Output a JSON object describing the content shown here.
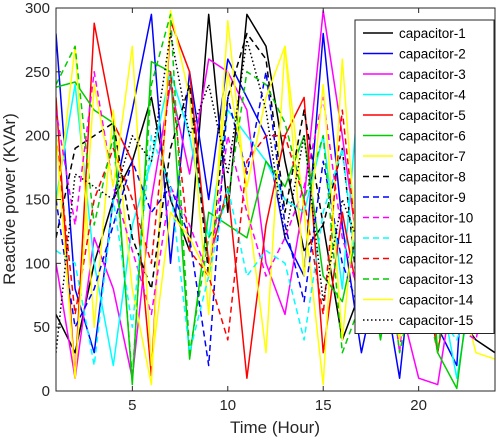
{
  "chart_data": {
    "type": "line",
    "title": "",
    "xlabel": "Time (Hour)",
    "ylabel": "Reactive power (KVAr)",
    "xlim": [
      1,
      24
    ],
    "ylim": [
      0,
      300
    ],
    "xticks": [
      5,
      10,
      15,
      20
    ],
    "yticks": [
      0,
      50,
      100,
      150,
      200,
      250,
      300
    ],
    "grid": false,
    "legend": "top-right",
    "x": [
      1,
      2,
      3,
      4,
      5,
      6,
      7,
      8,
      9,
      10,
      11,
      12,
      13,
      14,
      15,
      16,
      17,
      18,
      19,
      20,
      21,
      22,
      23,
      24
    ],
    "series": [
      {
        "name": "capacitor-1",
        "color": "#000000",
        "dash": "solid",
        "values": [
          60,
          30,
          100,
          150,
          180,
          230,
          150,
          110,
          295,
          140,
          295,
          270,
          180,
          110,
          130,
          40,
          80,
          70,
          150,
          90,
          50,
          60,
          40,
          30
        ]
      },
      {
        "name": "capacitor-2",
        "color": "#0000ff",
        "dash": "solid",
        "values": [
          280,
          80,
          30,
          150,
          220,
          295,
          100,
          250,
          150,
          260,
          230,
          200,
          120,
          90,
          280,
          130,
          30,
          100,
          10,
          150,
          50,
          20,
          240,
          150
        ]
      },
      {
        "name": "capacitor-3",
        "color": "#ff00ff",
        "dash": "solid",
        "values": [
          100,
          10,
          120,
          80,
          10,
          150,
          240,
          170,
          260,
          250,
          220,
          100,
          60,
          150,
          298,
          200,
          90,
          200,
          70,
          10,
          5,
          100,
          150,
          60
        ]
      },
      {
        "name": "capacitor-4",
        "color": "#00ffff",
        "dash": "solid",
        "values": [
          150,
          240,
          100,
          20,
          130,
          180,
          250,
          200,
          120,
          220,
          200,
          180,
          150,
          140,
          200,
          80,
          260,
          100,
          50,
          130,
          90,
          10,
          100,
          60
        ]
      },
      {
        "name": "capacitor-5",
        "color": "#ff0000",
        "dash": "solid",
        "values": [
          230,
          10,
          288,
          210,
          180,
          12,
          290,
          250,
          100,
          160,
          10,
          130,
          200,
          230,
          30,
          140,
          60,
          200,
          70,
          120,
          30,
          120,
          110,
          150
        ]
      },
      {
        "name": "capacitor-6",
        "color": "#00cc00",
        "dash": "solid",
        "values": [
          238,
          242,
          220,
          210,
          5,
          258,
          250,
          25,
          140,
          130,
          120,
          180,
          160,
          200,
          90,
          70,
          140,
          40,
          130,
          220,
          30,
          2,
          120,
          140
        ]
      },
      {
        "name": "capacitor-7",
        "color": "#ffff00",
        "dash": "solid",
        "values": [
          140,
          270,
          50,
          220,
          80,
          5,
          298,
          230,
          60,
          290,
          150,
          30,
          270,
          140,
          5,
          260,
          60,
          220,
          120,
          80,
          160,
          90,
          30,
          25
        ]
      },
      {
        "name": "capacitor-8",
        "color": "#000000",
        "dash": "dashed",
        "values": [
          120,
          190,
          200,
          210,
          120,
          80,
          190,
          240,
          90,
          230,
          280,
          260,
          140,
          220,
          130,
          190,
          50,
          180,
          100,
          240,
          60,
          150,
          90,
          200
        ]
      },
      {
        "name": "capacitor-9",
        "color": "#0000ff",
        "dash": "dashed",
        "values": [
          150,
          50,
          80,
          130,
          180,
          140,
          160,
          120,
          20,
          230,
          170,
          250,
          130,
          70,
          180,
          100,
          60,
          200,
          80,
          50,
          120,
          140,
          70,
          90
        ]
      },
      {
        "name": "capacitor-10",
        "color": "#ff00ff",
        "dash": "dashed",
        "values": [
          220,
          130,
          250,
          160,
          110,
          60,
          160,
          130,
          90,
          200,
          140,
          90,
          120,
          160,
          230,
          120,
          70,
          150,
          30,
          200,
          80,
          50,
          40,
          110
        ]
      },
      {
        "name": "capacitor-11",
        "color": "#00ffff",
        "dash": "dashed",
        "values": [
          110,
          100,
          20,
          150,
          50,
          200,
          160,
          30,
          90,
          160,
          90,
          110,
          100,
          40,
          140,
          190,
          60,
          110,
          150,
          90,
          60,
          40,
          80,
          130
        ]
      },
      {
        "name": "capacitor-12",
        "color": "#ff0000",
        "dash": "dashed",
        "values": [
          200,
          60,
          150,
          190,
          150,
          100,
          250,
          110,
          90,
          40,
          180,
          200,
          200,
          150,
          60,
          220,
          80,
          100,
          180,
          60,
          120,
          150,
          80,
          70
        ]
      },
      {
        "name": "capacitor-13",
        "color": "#00cc00",
        "dash": "dashed",
        "values": [
          240,
          270,
          130,
          200,
          10,
          240,
          295,
          30,
          120,
          150,
          250,
          240,
          210,
          150,
          200,
          30,
          70,
          150,
          30,
          100,
          30,
          150,
          90,
          80
        ]
      },
      {
        "name": "capacitor-14",
        "color": "#ffff00",
        "dash": "solid",
        "values": [
          200,
          10,
          240,
          160,
          270,
          20,
          140,
          120,
          90,
          250,
          160,
          230,
          270,
          90,
          240,
          40,
          190,
          110,
          40,
          170,
          200,
          50,
          100,
          140
        ]
      },
      {
        "name": "capacitor-15",
        "color": "#000000",
        "dash": "dotted",
        "values": [
          30,
          170,
          160,
          150,
          200,
          180,
          280,
          200,
          240,
          170,
          275,
          220,
          120,
          200,
          70,
          150,
          110,
          190,
          50,
          210,
          100,
          120,
          150,
          110
        ]
      }
    ]
  }
}
